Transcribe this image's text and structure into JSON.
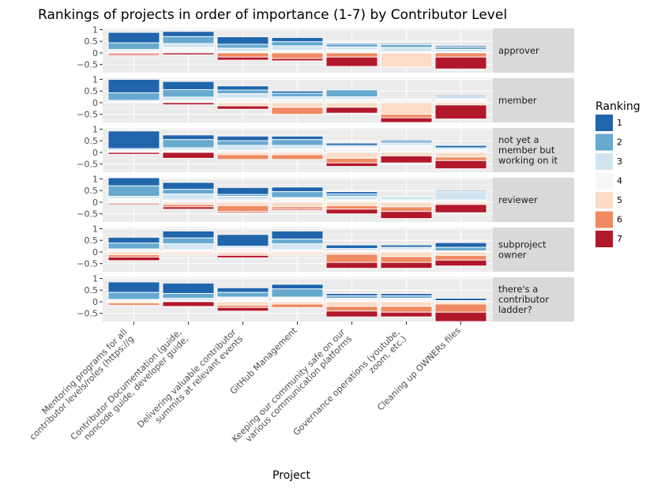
{
  "chart_data": {
    "type": "bar",
    "title": "Rankings of projects in order of importance (1-7) by Contributor Level",
    "xlabel": "Project",
    "ylabel": "",
    "ylim": [
      -0.85,
      1.05
    ],
    "yticks": [
      1,
      0.5,
      0,
      -0.5
    ],
    "ytick_labels": [
      "1",
      "0.5",
      "0",
      "−0.5"
    ],
    "grid": true,
    "legend": {
      "title": "Ranking",
      "placement": "right"
    },
    "categories": [
      [
        "Mentoring programs for all",
        "contributor levels/roles (https://g"
      ],
      [
        "Contributor Documentation (guide,",
        "noncode guide, developer guide,"
      ],
      [
        "Delivering valuable contributor",
        "summits at relevant events"
      ],
      [
        "GitHub Management"
      ],
      [
        "Keeping our community safe on our",
        "various communication platforms"
      ],
      [
        "Governance operations (youtube,",
        "zoom, etc.)"
      ],
      [
        "Cleaning up OWNERs files"
      ]
    ],
    "rankings": [
      {
        "name": "1",
        "color": "#2166ac"
      },
      {
        "name": "2",
        "color": "#67a9cf"
      },
      {
        "name": "3",
        "color": "#d1e5f0"
      },
      {
        "name": "4",
        "color": "#f7f7f7"
      },
      {
        "name": "5",
        "color": "#fddbc7"
      },
      {
        "name": "6",
        "color": "#ef8a62"
      },
      {
        "name": "7",
        "color": "#b2182b"
      }
    ],
    "facets": [
      {
        "label": [
          "approver"
        ],
        "values": [
          [
            0.45,
            0.28,
            0.07,
            0.08,
            0.0,
            0.07,
            0.05
          ],
          [
            0.22,
            0.3,
            0.17,
            0.23,
            0.0,
            0.0,
            0.08
          ],
          [
            0.32,
            0.17,
            0.13,
            0.07,
            0.0,
            0.18,
            0.13
          ],
          [
            0.18,
            0.18,
            0.18,
            0.12,
            0.0,
            0.24,
            0.1
          ],
          [
            0.05,
            0.12,
            0.12,
            0.13,
            0.0,
            0.18,
            0.4
          ],
          [
            0.05,
            0.12,
            0.18,
            0.05,
            0.6,
            0.0,
            0.0
          ],
          [
            0.06,
            0.1,
            0.1,
            0.05,
            0.0,
            0.18,
            0.51
          ]
        ]
      },
      {
        "label": [
          "member"
        ],
        "values": [
          [
            0.58,
            0.32,
            0.05,
            0.05,
            0.0,
            0.0,
            0.0
          ],
          [
            0.35,
            0.32,
            0.15,
            0.09,
            0.0,
            0.0,
            0.09
          ],
          [
            0.18,
            0.15,
            0.2,
            0.19,
            0.14,
            0.0,
            0.14
          ],
          [
            0.1,
            0.15,
            0.1,
            0.15,
            0.2,
            0.3,
            0.0
          ],
          [
            0.0,
            0.3,
            0.1,
            0.15,
            0.2,
            0.0,
            0.25
          ],
          [
            0.0,
            0.0,
            0.0,
            0.15,
            0.5,
            0.15,
            0.2
          ],
          [
            0.05,
            0.05,
            0.05,
            0.15,
            0.1,
            0.0,
            0.6
          ]
        ]
      },
      {
        "label": [
          "not yet a",
          "member but",
          "working on it"
        ],
        "values": [
          [
            0.75,
            0.05,
            0.05,
            0.07,
            0.0,
            0.0,
            0.08
          ],
          [
            0.2,
            0.35,
            0.1,
            0.1,
            0.0,
            0.0,
            0.25
          ],
          [
            0.2,
            0.2,
            0.2,
            0.1,
            0.1,
            0.2,
            0.0
          ],
          [
            0.15,
            0.25,
            0.15,
            0.15,
            0.1,
            0.2,
            0.0
          ],
          [
            0.1,
            0.05,
            0.05,
            0.2,
            0.25,
            0.2,
            0.15
          ],
          [
            0.05,
            0.1,
            0.1,
            0.3,
            0.15,
            0.0,
            0.3
          ],
          [
            0.1,
            0.05,
            0.05,
            0.1,
            0.2,
            0.15,
            0.35
          ]
        ]
      },
      {
        "label": [
          "reviewer"
        ],
        "values": [
          [
            0.35,
            0.45,
            0.1,
            0.15,
            0.05,
            0.0,
            0.05
          ],
          [
            0.3,
            0.2,
            0.25,
            0.1,
            0.1,
            0.1,
            0.1
          ],
          [
            0.3,
            0.08,
            0.15,
            0.1,
            0.15,
            0.25,
            0.05
          ],
          [
            0.2,
            0.25,
            0.05,
            0.15,
            0.2,
            0.1,
            0.05
          ],
          [
            0.1,
            0.1,
            0.15,
            0.1,
            0.15,
            0.15,
            0.2
          ],
          [
            0.0,
            0.0,
            0.15,
            0.1,
            0.2,
            0.2,
            0.3
          ],
          [
            0.05,
            0.0,
            0.35,
            0.1,
            0.1,
            0.0,
            0.35
          ]
        ]
      },
      {
        "label": [
          "subproject",
          "owner"
        ],
        "values": [
          [
            0.25,
            0.25,
            0.0,
            0.13,
            0.12,
            0.1,
            0.15
          ],
          [
            0.3,
            0.25,
            0.25,
            0.1,
            0.1,
            0.0,
            0.0
          ],
          [
            0.5,
            0.05,
            0.0,
            0.2,
            0.1,
            0.05,
            0.1
          ],
          [
            0.35,
            0.2,
            0.25,
            0.1,
            0.1,
            0.0,
            0.0
          ],
          [
            0.15,
            0.05,
            0.0,
            0.1,
            0.1,
            0.35,
            0.25
          ],
          [
            0.1,
            0.0,
            0.1,
            0.1,
            0.2,
            0.25,
            0.25
          ],
          [
            0.2,
            0.15,
            0.0,
            0.05,
            0.15,
            0.2,
            0.25
          ]
        ]
      },
      {
        "label": [
          "there's a",
          "contributor",
          "ladder?"
        ],
        "values": [
          [
            0.45,
            0.3,
            0.0,
            0.1,
            0.05,
            0.1,
            0.0
          ],
          [
            0.45,
            0.2,
            0.1,
            0.05,
            0.0,
            0.0,
            0.2
          ],
          [
            0.2,
            0.2,
            0.05,
            0.15,
            0.15,
            0.1,
            0.15
          ],
          [
            0.2,
            0.35,
            0.05,
            0.15,
            0.1,
            0.15,
            0.0
          ],
          [
            0.1,
            0.1,
            0.05,
            0.1,
            0.2,
            0.2,
            0.25
          ],
          [
            0.1,
            0.1,
            0.05,
            0.1,
            0.2,
            0.25,
            0.2
          ],
          [
            0.1,
            0.0,
            0.0,
            0.05,
            0.1,
            0.35,
            0.4
          ]
        ]
      }
    ]
  }
}
